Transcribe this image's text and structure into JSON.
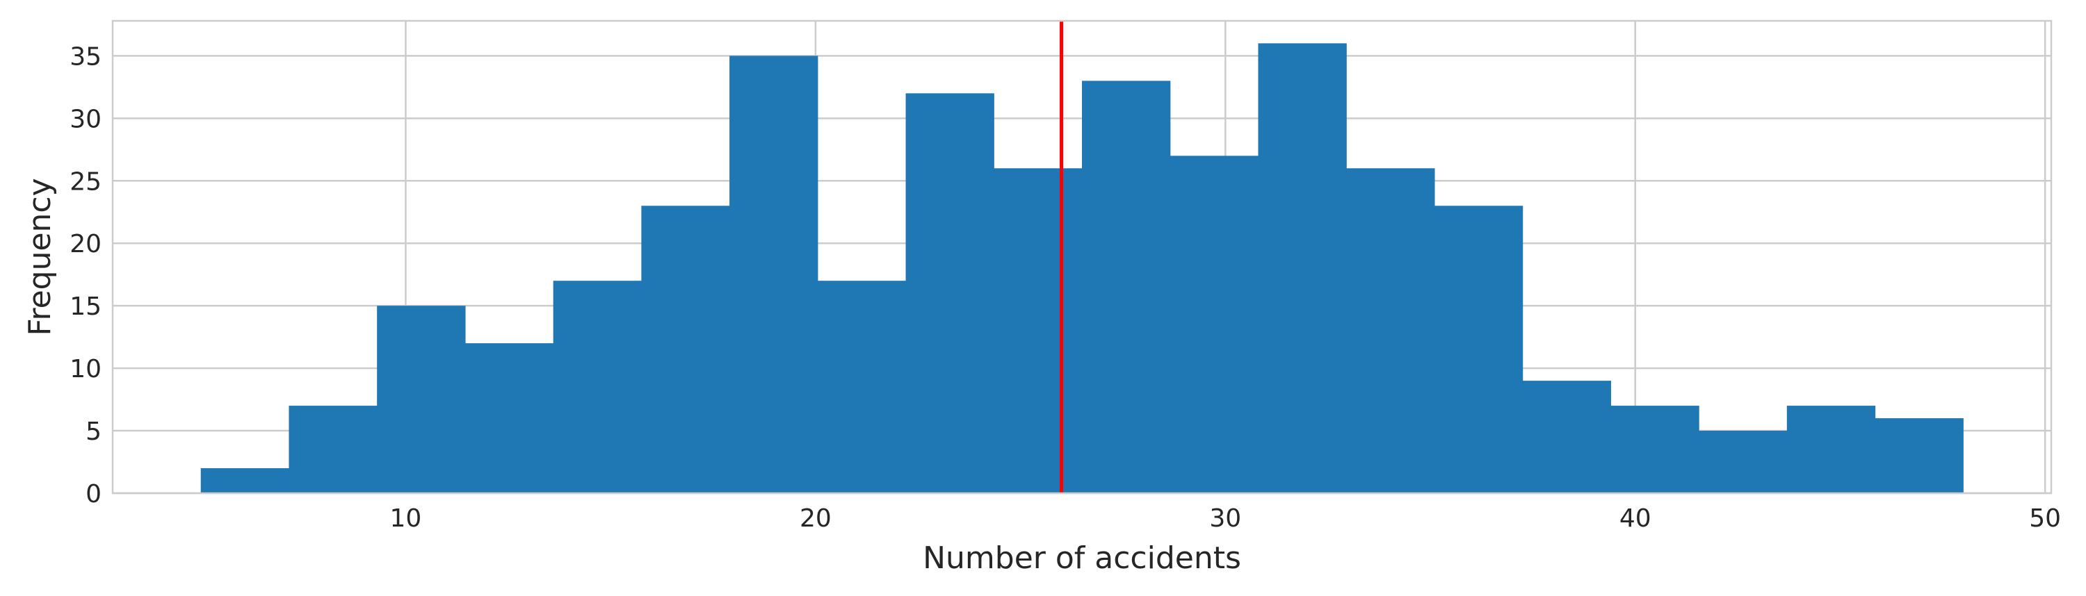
{
  "chart_data": {
    "type": "bar",
    "title": "",
    "xlabel": "Number of accidents",
    "ylabel": "Frequency",
    "bins": [
      {
        "x0": 5.0,
        "x1": 7.15,
        "value": 2
      },
      {
        "x0": 7.15,
        "x1": 9.3,
        "value": 7
      },
      {
        "x0": 9.3,
        "x1": 11.45,
        "value": 15
      },
      {
        "x0": 11.45,
        "x1": 13.6,
        "value": 12
      },
      {
        "x0": 13.6,
        "x1": 15.75,
        "value": 17
      },
      {
        "x0": 15.75,
        "x1": 17.9,
        "value": 23
      },
      {
        "x0": 17.9,
        "x1": 20.05,
        "value": 35
      },
      {
        "x0": 20.05,
        "x1": 22.2,
        "value": 17
      },
      {
        "x0": 22.2,
        "x1": 24.35,
        "value": 32
      },
      {
        "x0": 24.35,
        "x1": 26.5,
        "value": 26
      },
      {
        "x0": 26.5,
        "x1": 28.65,
        "value": 33
      },
      {
        "x0": 28.65,
        "x1": 30.8,
        "value": 27
      },
      {
        "x0": 30.8,
        "x1": 32.95,
        "value": 36
      },
      {
        "x0": 32.95,
        "x1": 35.1,
        "value": 26
      },
      {
        "x0": 35.1,
        "x1": 37.25,
        "value": 23
      },
      {
        "x0": 37.25,
        "x1": 39.4,
        "value": 9
      },
      {
        "x0": 39.4,
        "x1": 41.55,
        "value": 7
      },
      {
        "x0": 41.55,
        "x1": 43.7,
        "value": 5
      },
      {
        "x0": 43.7,
        "x1": 45.85,
        "value": 7
      },
      {
        "x0": 45.85,
        "x1": 48.0,
        "value": 6
      }
    ],
    "xlim": [
      2.85,
      50.15
    ],
    "ylim": [
      0,
      37.8
    ],
    "xticks": [
      10,
      20,
      30,
      40,
      50
    ],
    "yticks": [
      0,
      5,
      10,
      15,
      20,
      25,
      30,
      35
    ],
    "vline": {
      "x": 26.0,
      "color": "#ff0000"
    },
    "bar_color": "#1f77b4",
    "grid": true
  }
}
